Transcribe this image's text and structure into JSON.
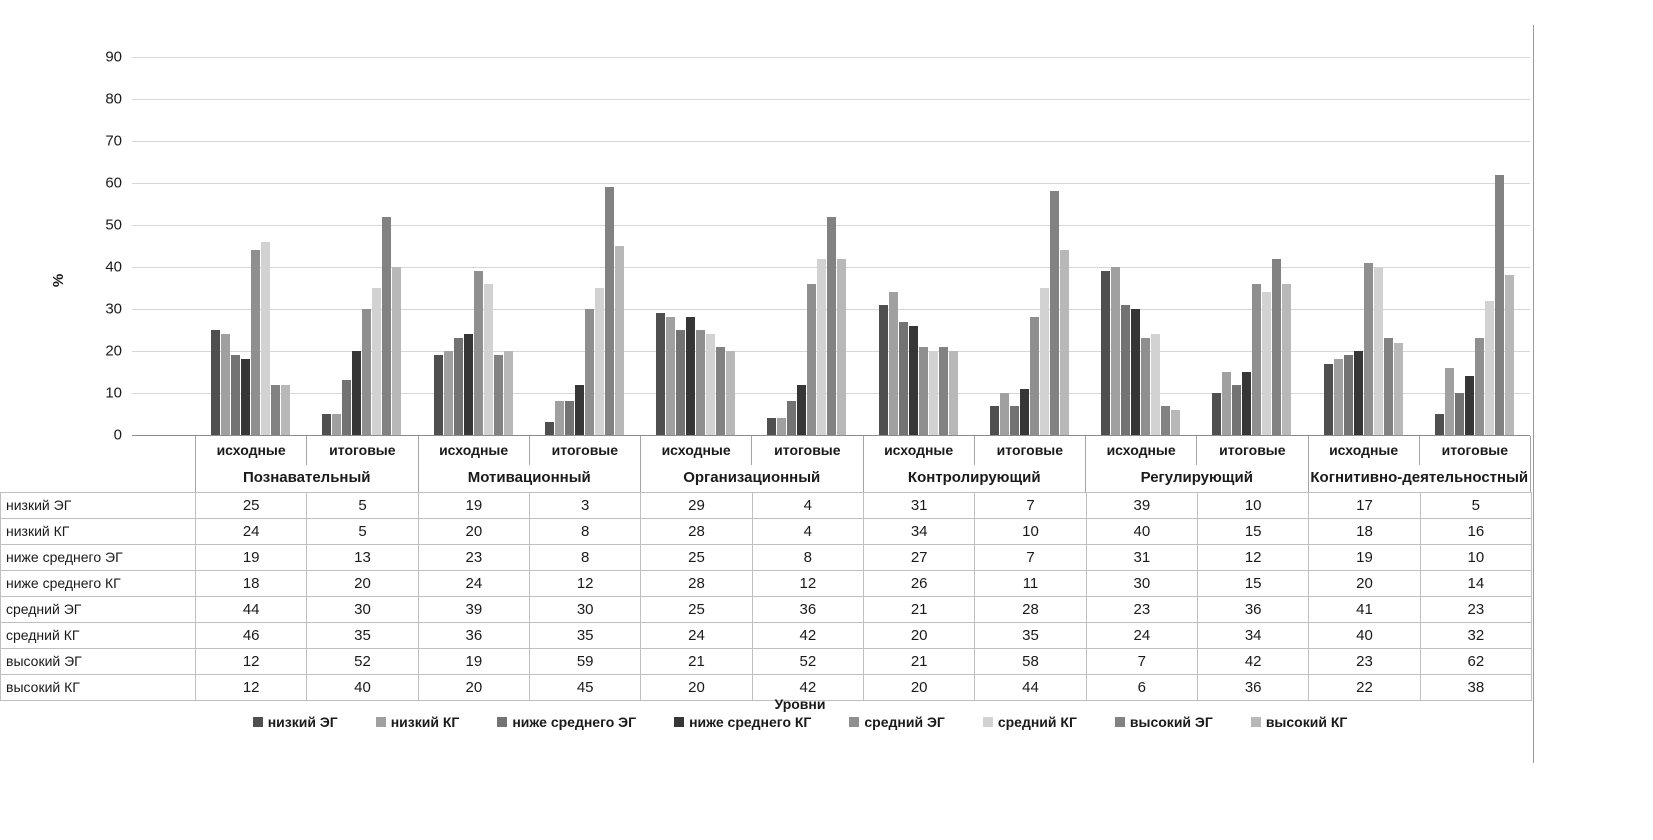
{
  "chart_data": {
    "type": "bar",
    "title": "",
    "xlabel": "Уровни",
    "ylabel": "%",
    "ylim": [
      0,
      90
    ],
    "ytick_step": 10,
    "yticks": [
      0,
      10,
      20,
      30,
      40,
      50,
      60,
      70,
      80,
      90
    ],
    "grid": true,
    "legend_position": "bottom",
    "data_table_shown": true,
    "groups": [
      "Познавательный",
      "Мотивационный",
      "Организационный",
      "Контролирующий",
      "Регулирующий",
      "Когнитивно-деятельностный"
    ],
    "subcategories": [
      "исходные",
      "итоговые"
    ],
    "series": [
      {
        "name": "низкий ЭГ",
        "color": "#4f4f4f",
        "values": [
          25,
          5,
          19,
          3,
          29,
          4,
          31,
          7,
          39,
          10,
          17,
          5
        ]
      },
      {
        "name": "низкий КГ",
        "color": "#a0a0a0",
        "values": [
          24,
          5,
          20,
          8,
          28,
          4,
          34,
          10,
          40,
          15,
          18,
          16
        ]
      },
      {
        "name": "ниже среднего ЭГ",
        "color": "#737373",
        "values": [
          19,
          13,
          23,
          8,
          25,
          8,
          27,
          7,
          31,
          12,
          19,
          10
        ]
      },
      {
        "name": "ниже среднего КГ",
        "color": "#363636",
        "values": [
          18,
          20,
          24,
          12,
          28,
          12,
          26,
          11,
          30,
          15,
          20,
          14
        ]
      },
      {
        "name": "средний ЭГ",
        "color": "#8f8f8f",
        "values": [
          44,
          30,
          39,
          30,
          25,
          36,
          21,
          28,
          23,
          36,
          41,
          23
        ]
      },
      {
        "name": "средний КГ",
        "color": "#d2d2d2",
        "values": [
          46,
          35,
          36,
          35,
          24,
          42,
          20,
          35,
          24,
          34,
          40,
          32
        ]
      },
      {
        "name": "высокий ЭГ",
        "color": "#828282",
        "values": [
          12,
          52,
          19,
          59,
          21,
          52,
          21,
          58,
          7,
          42,
          23,
          62
        ]
      },
      {
        "name": "высокий КГ",
        "color": "#b8b8b8",
        "values": [
          12,
          40,
          20,
          45,
          20,
          42,
          20,
          44,
          6,
          36,
          22,
          38
        ]
      }
    ]
  }
}
